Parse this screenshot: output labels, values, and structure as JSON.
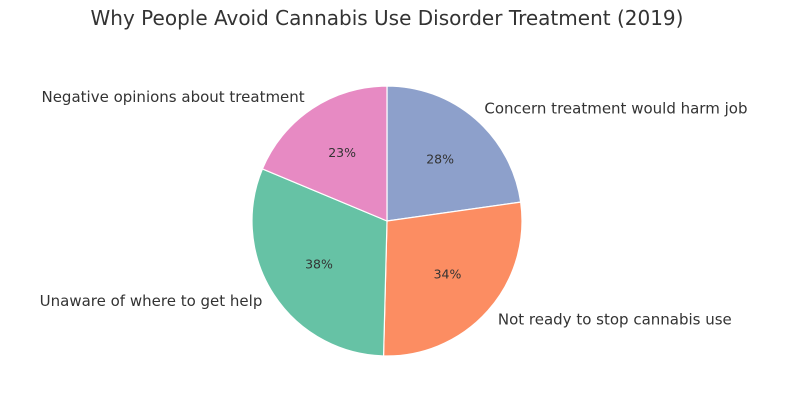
{
  "chart_data": {
    "type": "pie",
    "title": "Why People Avoid Cannabis Use Disorder Treatment (2019)",
    "start_angle_deg": 90,
    "direction": "clockwise",
    "slices": [
      {
        "label": "Concern treatment would harm job",
        "value": 28,
        "pct_label": "28%",
        "color": "#8da0cb"
      },
      {
        "label": "Not ready to stop cannabis use",
        "value": 34,
        "pct_label": "34%",
        "color": "#fc8d62"
      },
      {
        "label": "Unaware of where to get help",
        "value": 38,
        "pct_label": "38%",
        "color": "#66c2a5"
      },
      {
        "label": "Negative opinions about treatment",
        "value": 23,
        "pct_label": "23%",
        "color": "#e78ac3"
      }
    ]
  }
}
